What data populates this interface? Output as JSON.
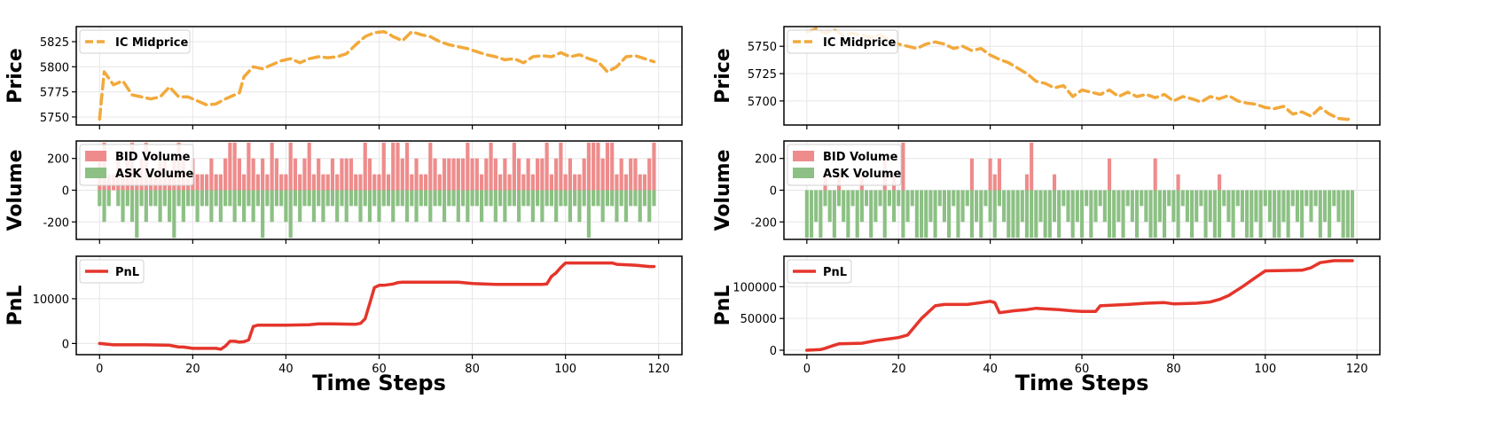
{
  "figure": {
    "xlabel": "Time Steps"
  },
  "colors": {
    "midprice": "#F2A93B",
    "bid": "#EE8C8C",
    "ask": "#8CC084",
    "pnl": "#E5352B",
    "grid": "#E6E6E6",
    "frame": "#000000"
  },
  "chart_data": [
    {
      "type": "line",
      "panel": "left-price",
      "ylabel": "Price",
      "legend": [
        "IC Midprice"
      ],
      "legend_placement": "top-left",
      "grid": true,
      "xlim": [
        -5,
        125
      ],
      "ylim": [
        5742,
        5840
      ],
      "xticks": [
        0,
        20,
        40,
        60,
        80,
        100,
        120
      ],
      "yticks": [
        5750,
        5775,
        5800,
        5825
      ],
      "series": [
        {
          "name": "IC Midprice",
          "x": [
            0,
            1,
            3,
            5,
            7,
            9,
            11,
            13,
            15,
            17,
            19,
            21,
            23,
            25,
            27,
            29,
            30,
            31,
            33,
            35,
            37,
            39,
            41,
            43,
            45,
            47,
            49,
            51,
            53,
            55,
            57,
            59,
            61,
            62,
            63,
            65,
            67,
            69,
            71,
            73,
            75,
            77,
            79,
            81,
            83,
            85,
            87,
            89,
            91,
            93,
            95,
            97,
            99,
            101,
            103,
            105,
            107,
            109,
            111,
            113,
            115,
            117,
            119
          ],
          "y": [
            5748,
            5795,
            5782,
            5786,
            5772,
            5770,
            5768,
            5770,
            5780,
            5770,
            5770,
            5766,
            5762,
            5763,
            5768,
            5772,
            5774,
            5790,
            5800,
            5798,
            5802,
            5806,
            5808,
            5804,
            5808,
            5810,
            5809,
            5810,
            5813,
            5822,
            5830,
            5834,
            5835,
            5833,
            5830,
            5826,
            5835,
            5832,
            5830,
            5825,
            5822,
            5820,
            5818,
            5815,
            5812,
            5810,
            5807,
            5808,
            5804,
            5810,
            5811,
            5810,
            5814,
            5810,
            5812,
            5808,
            5805,
            5795,
            5800,
            5810,
            5811,
            5808,
            5805
          ]
        }
      ]
    },
    {
      "type": "bar",
      "panel": "left-volume",
      "ylabel": "Volume",
      "legend": [
        "BID Volume",
        "ASK Volume"
      ],
      "legend_placement": "top-left",
      "grid": true,
      "xlim": [
        -5,
        125
      ],
      "ylim": [
        -310,
        310
      ],
      "xticks": [
        0,
        20,
        40,
        60,
        80,
        100,
        120
      ],
      "yticks": [
        -200,
        0,
        200
      ],
      "series": [
        {
          "name": "BID Volume",
          "values": [
            200,
            300,
            100,
            100,
            200,
            100,
            200,
            300,
            100,
            200,
            300,
            100,
            100,
            200,
            200,
            100,
            200,
            300,
            200,
            100,
            200,
            100,
            100,
            100,
            200,
            100,
            100,
            200,
            300,
            300,
            200,
            100,
            300,
            200,
            100,
            200,
            100,
            300,
            200,
            100,
            100,
            300,
            200,
            100,
            200,
            300,
            100,
            200,
            100,
            100,
            200,
            100,
            200,
            200,
            200,
            100,
            100,
            300,
            200,
            100,
            100,
            300,
            100,
            300,
            300,
            200,
            300,
            100,
            200,
            100,
            100,
            300,
            200,
            100,
            200,
            200,
            200,
            200,
            200,
            300,
            200,
            200,
            100,
            200,
            300,
            200,
            100,
            200,
            100,
            300,
            200,
            100,
            200,
            100,
            200,
            200,
            300,
            100,
            200,
            300,
            100,
            200,
            100,
            100,
            200,
            300,
            300,
            300,
            200,
            300,
            300,
            100,
            200,
            100,
            200,
            200,
            100,
            100,
            200,
            300
          ]
        },
        {
          "name": "ASK Volume",
          "values": [
            -100,
            -200,
            -100,
            0,
            -100,
            -200,
            -100,
            -200,
            -300,
            -100,
            -200,
            -100,
            -100,
            -200,
            -100,
            -200,
            -300,
            -100,
            -200,
            -100,
            -100,
            -200,
            -100,
            -100,
            -200,
            -100,
            -200,
            -100,
            -100,
            -200,
            -100,
            -200,
            -100,
            -200,
            -100,
            -300,
            -100,
            -200,
            -100,
            -100,
            -200,
            -300,
            -100,
            -200,
            -100,
            -100,
            -200,
            -100,
            -200,
            -100,
            -100,
            -200,
            -100,
            -200,
            -100,
            -100,
            -200,
            -100,
            -200,
            -100,
            -200,
            -100,
            -100,
            -200,
            -100,
            -100,
            -200,
            -100,
            -200,
            -100,
            -100,
            -200,
            -100,
            -100,
            -200,
            -100,
            -100,
            -200,
            -100,
            -200,
            -100,
            -100,
            -200,
            -100,
            -100,
            -200,
            -100,
            -200,
            -100,
            -100,
            -200,
            -100,
            -100,
            -200,
            -100,
            -200,
            -100,
            -100,
            -200,
            -100,
            -100,
            -200,
            -100,
            -200,
            -100,
            -300,
            -100,
            -100,
            -200,
            -100,
            -100,
            -200,
            -100,
            -200,
            -100,
            -100,
            -200,
            -100,
            -200,
            -100
          ]
        }
      ]
    },
    {
      "type": "line",
      "panel": "left-pnl",
      "ylabel": "PnL",
      "legend": [
        "PnL"
      ],
      "legend_placement": "top-left",
      "grid": true,
      "xlim": [
        -5,
        125
      ],
      "ylim": [
        -2500,
        19500
      ],
      "xticks": [
        0,
        20,
        40,
        60,
        80,
        100,
        120
      ],
      "yticks": [
        0,
        10000
      ],
      "series": [
        {
          "name": "PnL",
          "x": [
            0,
            3,
            10,
            15,
            17,
            18,
            20,
            25,
            26,
            27,
            28,
            29,
            30,
            31,
            32,
            33,
            34,
            36,
            40,
            45,
            47,
            50,
            55,
            56,
            57,
            58,
            59,
            60,
            61,
            63,
            64,
            65,
            70,
            77,
            80,
            85,
            95,
            96,
            97,
            98,
            99,
            100,
            110,
            111,
            115,
            118,
            119
          ],
          "y": [
            0,
            -300,
            -300,
            -400,
            -800,
            -800,
            -1100,
            -1100,
            -1300,
            -600,
            500,
            500,
            300,
            400,
            800,
            3800,
            4100,
            4100,
            4100,
            4200,
            4400,
            4400,
            4300,
            4500,
            5500,
            9000,
            12500,
            13000,
            13000,
            13300,
            13600,
            13700,
            13700,
            13700,
            13400,
            13200,
            13200,
            13300,
            15000,
            15800,
            17000,
            18000,
            18000,
            17700,
            17500,
            17200,
            17200
          ]
        }
      ]
    },
    {
      "type": "line",
      "panel": "right-price",
      "ylabel": "Price",
      "legend": [
        "IC Midprice"
      ],
      "legend_placement": "top-left",
      "grid": true,
      "xlim": [
        -5,
        125
      ],
      "ylim": [
        5678,
        5768
      ],
      "xticks": [
        0,
        20,
        40,
        60,
        80,
        100,
        120
      ],
      "yticks": [
        5700,
        5725,
        5750
      ],
      "series": [
        {
          "name": "IC Midprice",
          "x": [
            0,
            2,
            4,
            6,
            8,
            10,
            12,
            14,
            16,
            18,
            20,
            22,
            24,
            26,
            28,
            30,
            32,
            34,
            36,
            38,
            40,
            42,
            44,
            46,
            48,
            50,
            52,
            54,
            56,
            58,
            60,
            62,
            64,
            66,
            68,
            70,
            72,
            74,
            76,
            78,
            80,
            82,
            84,
            86,
            88,
            90,
            92,
            94,
            96,
            98,
            100,
            102,
            104,
            106,
            108,
            110,
            112,
            114,
            116,
            118,
            119
          ],
          "y": [
            5763,
            5766,
            5762,
            5765,
            5760,
            5762,
            5760,
            5758,
            5760,
            5756,
            5752,
            5750,
            5748,
            5752,
            5754,
            5752,
            5748,
            5750,
            5746,
            5748,
            5742,
            5738,
            5735,
            5730,
            5725,
            5718,
            5716,
            5712,
            5714,
            5704,
            5710,
            5708,
            5706,
            5710,
            5704,
            5708,
            5704,
            5706,
            5703,
            5706,
            5700,
            5704,
            5702,
            5699,
            5704,
            5702,
            5705,
            5700,
            5698,
            5697,
            5694,
            5693,
            5695,
            5688,
            5690,
            5686,
            5694,
            5688,
            5684,
            5683,
            5685
          ]
        }
      ]
    },
    {
      "type": "bar",
      "panel": "right-volume",
      "ylabel": "Volume",
      "legend": [
        "BID Volume",
        "ASK Volume"
      ],
      "legend_placement": "top-left",
      "grid": true,
      "xlim": [
        -5,
        125
      ],
      "ylim": [
        -310,
        310
      ],
      "xticks": [
        0,
        20,
        40,
        60,
        80,
        100,
        120
      ],
      "yticks": [
        -200,
        0,
        200
      ],
      "series": [
        {
          "name": "BID Volume",
          "values": [
            0,
            0,
            0,
            0,
            100,
            0,
            0,
            100,
            0,
            0,
            0,
            0,
            100,
            0,
            0,
            0,
            0,
            200,
            0,
            100,
            0,
            300,
            0,
            0,
            0,
            0,
            0,
            0,
            0,
            0,
            0,
            0,
            0,
            0,
            0,
            0,
            200,
            0,
            0,
            0,
            200,
            100,
            200,
            0,
            0,
            0,
            0,
            0,
            100,
            300,
            0,
            0,
            0,
            0,
            100,
            0,
            0,
            0,
            0,
            0,
            0,
            0,
            0,
            0,
            0,
            0,
            200,
            0,
            0,
            0,
            0,
            0,
            0,
            0,
            0,
            0,
            200,
            0,
            0,
            0,
            0,
            100,
            0,
            0,
            0,
            0,
            0,
            0,
            0,
            0,
            100,
            0,
            0,
            0,
            0,
            0,
            0,
            0,
            0,
            0,
            0,
            0,
            0,
            0,
            0,
            0,
            0,
            0,
            0,
            0,
            0,
            0,
            0,
            0,
            0,
            0,
            0,
            0,
            0,
            0,
            0,
            0,
            0,
            0,
            0,
            0,
            0,
            0,
            0,
            0,
            0,
            0,
            0,
            0,
            0,
            0,
            0,
            0,
            0,
            0,
            0,
            0,
            0,
            0,
            0,
            0,
            0
          ]
        },
        {
          "name": "ASK Volume",
          "values": [
            -300,
            -300,
            -200,
            -300,
            -100,
            -200,
            -300,
            -100,
            -200,
            -300,
            -100,
            -300,
            -200,
            -100,
            -300,
            -200,
            -100,
            -300,
            -100,
            -200,
            -100,
            -300,
            -200,
            -100,
            -300,
            -300,
            -300,
            -200,
            -300,
            -100,
            -200,
            -300,
            -100,
            -300,
            -200,
            -100,
            -300,
            -200,
            -300,
            -100,
            -200,
            -300,
            -100,
            -200,
            -300,
            -300,
            -300,
            -200,
            -300,
            -300,
            -300,
            -200,
            -300,
            -300,
            -200,
            -300,
            -100,
            -200,
            -300,
            -200,
            -300,
            -100,
            -300,
            -200,
            -100,
            -200,
            -300,
            -300,
            -200,
            -300,
            -100,
            -200,
            -300,
            -100,
            -200,
            -300,
            -300,
            -200,
            -300,
            -100,
            -200,
            -300,
            -100,
            -200,
            -300,
            -200,
            -100,
            -300,
            -200,
            -300,
            -300,
            -100,
            -200,
            -300,
            -100,
            -200,
            -300,
            -300,
            -200,
            -300,
            -100,
            -200,
            -300,
            -300,
            -200,
            -300,
            -100,
            -200,
            -300,
            -100,
            -200,
            -100,
            -300,
            -200,
            -300,
            -100,
            -200,
            -300,
            -300,
            -300
          ]
        }
      ]
    },
    {
      "type": "line",
      "panel": "right-pnl",
      "ylabel": "PnL",
      "legend": [
        "PnL"
      ],
      "legend_placement": "top-left",
      "grid": true,
      "xlim": [
        -5,
        125
      ],
      "ylim": [
        -7000,
        148000
      ],
      "xticks": [
        0,
        20,
        40,
        60,
        80,
        100,
        120
      ],
      "yticks": [
        0,
        50000,
        100000
      ],
      "series": [
        {
          "name": "PnL",
          "x": [
            0,
            3,
            4,
            6,
            7,
            12,
            15,
            18,
            20,
            22,
            25,
            28,
            30,
            35,
            38,
            40,
            41,
            42,
            45,
            48,
            50,
            55,
            58,
            60,
            63,
            64,
            70,
            74,
            78,
            80,
            85,
            88,
            90,
            92,
            95,
            98,
            100,
            108,
            110,
            112,
            115,
            119
          ],
          "y": [
            0,
            1000,
            3000,
            8000,
            10000,
            11000,
            15000,
            18000,
            20000,
            24000,
            50000,
            70000,
            72000,
            72000,
            75000,
            77000,
            75000,
            59000,
            62000,
            64000,
            66000,
            64000,
            62000,
            61000,
            61000,
            70000,
            72000,
            74000,
            75000,
            73000,
            74000,
            76000,
            80000,
            86000,
            100000,
            115000,
            125000,
            126000,
            130000,
            138000,
            141000,
            141000
          ]
        }
      ]
    }
  ]
}
